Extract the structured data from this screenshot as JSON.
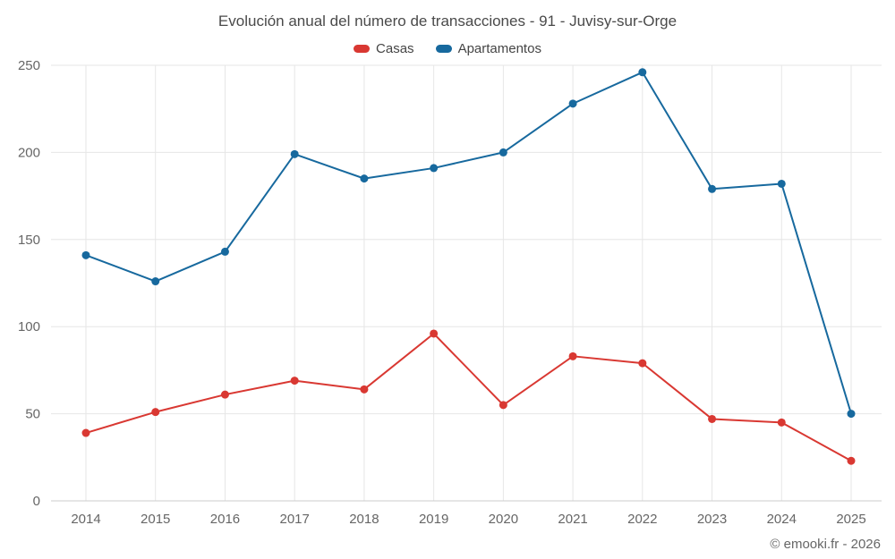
{
  "title": "Evolución anual del número de transacciones - 91 - Juvisy-sur-Orge",
  "footer": "© emooki.fr - 2026",
  "colors": {
    "grid": "#e6e6e6",
    "axis_line": "#cccccc",
    "tick_label": "#666666",
    "casas": "#d93832",
    "apartamentos": "#17699e"
  },
  "chart_data": {
    "type": "line",
    "title": "Evolución anual del número de transacciones - 91 - Juvisy-sur-Orge",
    "x": [
      2014,
      2015,
      2016,
      2017,
      2018,
      2019,
      2020,
      2021,
      2022,
      2023,
      2024,
      2025
    ],
    "series": [
      {
        "name": "Casas",
        "color": "#d93832",
        "values": [
          39,
          51,
          61,
          69,
          64,
          96,
          55,
          83,
          79,
          47,
          45,
          23
        ]
      },
      {
        "name": "Apartamentos",
        "color": "#17699e",
        "values": [
          141,
          126,
          143,
          199,
          185,
          191,
          200,
          228,
          246,
          179,
          182,
          50
        ]
      }
    ],
    "ylim": [
      0,
      250
    ],
    "yticks": [
      0,
      50,
      100,
      150,
      200,
      250
    ],
    "grid": true,
    "legend_position": "top",
    "xlabel": "",
    "ylabel": ""
  }
}
